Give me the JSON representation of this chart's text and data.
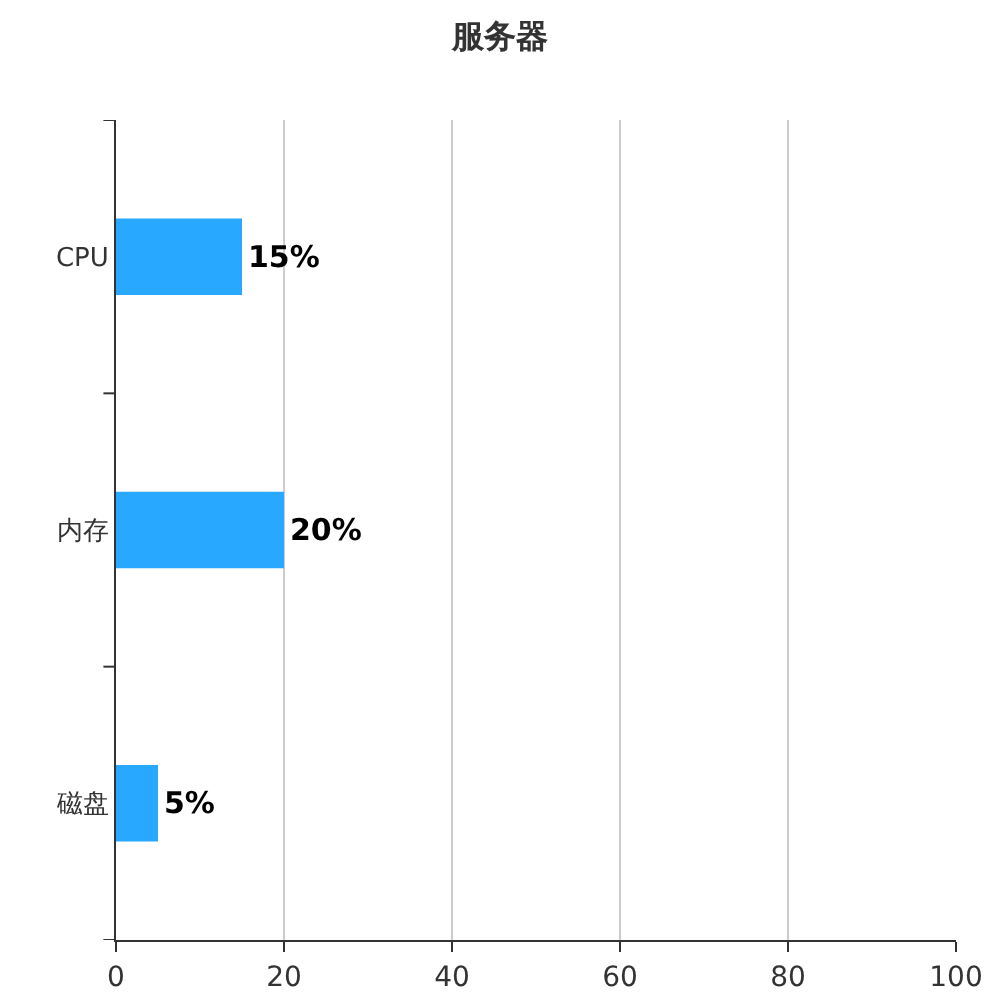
{
  "chart_data": {
    "type": "bar",
    "title": "服务器",
    "orientation": "horizontal",
    "categories": [
      "CPU",
      "内存",
      "磁盘"
    ],
    "values": [
      15,
      20,
      5
    ],
    "value_labels": [
      "15%",
      "20%",
      "5%"
    ],
    "color": "#29a8ff",
    "xlim": [
      0,
      100
    ],
    "xticks": [
      0,
      20,
      40,
      60,
      80,
      100
    ],
    "grid": "x",
    "legend": false
  }
}
